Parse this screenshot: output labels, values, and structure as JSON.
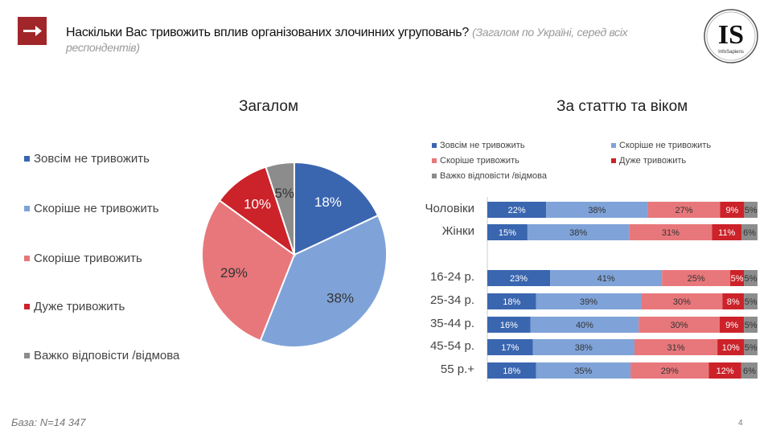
{
  "header": {
    "title": "Наскільки Вас тривожить вплив організованих злочинних угруповань?",
    "subtitle": "(Загалом по Україні, серед всіх респондентів)",
    "logo_text": "IS",
    "logo_subtext": "InfoSapiens"
  },
  "footer": {
    "base": "База: N=14 347",
    "page": "4"
  },
  "colors": {
    "accent": "#a0262a",
    "not_at_all": "#3a66b0",
    "rather_not": "#7fa3d8",
    "rather_yes": "#e8777b",
    "very": "#cc2229",
    "dk": "#8c8c8c"
  },
  "chart_data": [
    {
      "type": "pie",
      "title": "Загалом",
      "legend_position": "left",
      "categories": [
        "Зовсім не тривожить",
        "Скоріше не тривожить",
        "Скоріше тривожить",
        "Дуже тривожить",
        "Важко відповісти /відмова"
      ],
      "values": [
        18,
        38,
        29,
        10,
        5
      ],
      "labels": [
        "18%",
        "38%",
        "29%",
        "10%",
        "5%"
      ]
    },
    {
      "type": "bar",
      "orientation": "horizontal",
      "stacked": true,
      "title": "За статтю та віком",
      "legend_position": "top",
      "categories": [
        "Чоловіки",
        "Жінки",
        "16-24 р.",
        "25-34 р.",
        "35-44 р.",
        "45-54 р.",
        "55 р.+"
      ],
      "series": [
        {
          "name": "Зовсім не тривожить",
          "values": [
            22,
            15,
            23,
            18,
            16,
            17,
            18
          ]
        },
        {
          "name": "Скоріше не тривожить",
          "values": [
            38,
            38,
            41,
            39,
            40,
            38,
            35
          ]
        },
        {
          "name": "Скоріше тривожить",
          "values": [
            27,
            31,
            25,
            30,
            30,
            31,
            29
          ]
        },
        {
          "name": "Дуже тривожить",
          "values": [
            9,
            11,
            5,
            8,
            9,
            10,
            12
          ]
        },
        {
          "name": "Важко відповісти /відмова",
          "values": [
            5,
            6,
            5,
            5,
            5,
            5,
            6
          ]
        }
      ]
    }
  ]
}
